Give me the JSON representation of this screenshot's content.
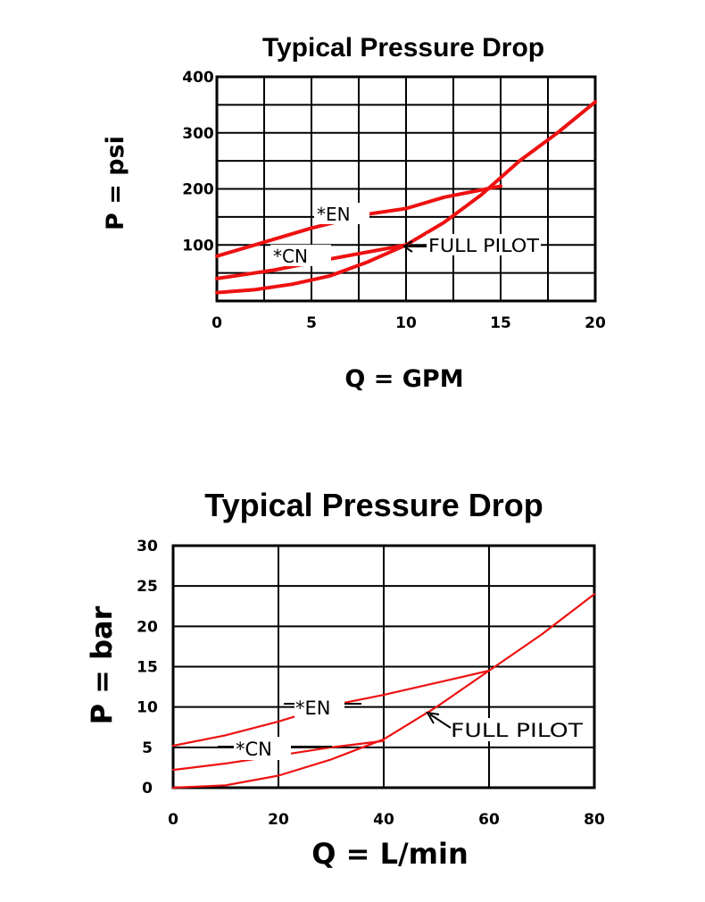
{
  "chart_data": [
    {
      "type": "line",
      "title": "Typical Pressure Drop",
      "xlabel": "Q = GPM",
      "ylabel": "P = psi",
      "xlim": [
        0,
        20
      ],
      "ylim": [
        0,
        400
      ],
      "grid": true,
      "x_ticks": [
        "0",
        "5",
        "10",
        "15",
        "20"
      ],
      "y_ticks": [
        "400",
        "300",
        "200",
        "100"
      ],
      "series": [
        {
          "name": "*EN",
          "color": "#ee1111",
          "x": [
            0,
            2,
            5,
            8,
            10,
            12,
            15
          ],
          "y": [
            80,
            100,
            130,
            155,
            165,
            185,
            205
          ]
        },
        {
          "name": "*CN",
          "color": "#ee1111",
          "x": [
            0,
            1,
            3,
            6,
            10
          ],
          "y": [
            40,
            45,
            55,
            75,
            100
          ]
        },
        {
          "name": "FULL PILOT",
          "color": "#ee1111",
          "x": [
            0,
            2,
            4,
            6,
            8,
            10,
            12,
            14,
            16,
            18,
            20
          ],
          "y": [
            15,
            20,
            30,
            45,
            70,
            100,
            140,
            190,
            250,
            300,
            355
          ]
        }
      ],
      "annotations": [
        "*EN",
        "*CN",
        "FULL PILOT"
      ]
    },
    {
      "type": "line",
      "title": "Typical Pressure Drop",
      "xlabel": "Q = L/min",
      "ylabel": "P = bar",
      "xlim": [
        0,
        80
      ],
      "ylim": [
        0,
        30
      ],
      "grid": true,
      "x_ticks": [
        "0",
        "20",
        "40",
        "60",
        "80"
      ],
      "y_ticks": [
        "30",
        "25",
        "20",
        "15",
        "10",
        "5",
        "0"
      ],
      "series": [
        {
          "name": "*EN",
          "color": "#ee1111",
          "x": [
            0,
            10,
            20,
            30,
            40,
            50,
            60
          ],
          "y": [
            5.2,
            6.5,
            8.2,
            10.2,
            11.5,
            13,
            14.5
          ]
        },
        {
          "name": "*CN",
          "color": "#ee1111",
          "x": [
            0,
            10,
            20,
            30,
            40
          ],
          "y": [
            2.2,
            3,
            4,
            5,
            5.8
          ]
        },
        {
          "name": "FULL PILOT",
          "color": "#ee1111",
          "x": [
            0,
            10,
            20,
            30,
            40,
            50,
            60,
            70,
            80
          ],
          "y": [
            0,
            0.3,
            1.5,
            3.5,
            6,
            10,
            14.5,
            19,
            24
          ]
        }
      ],
      "annotations": [
        "*EN",
        "*CN",
        "FULL PILOT"
      ]
    }
  ]
}
